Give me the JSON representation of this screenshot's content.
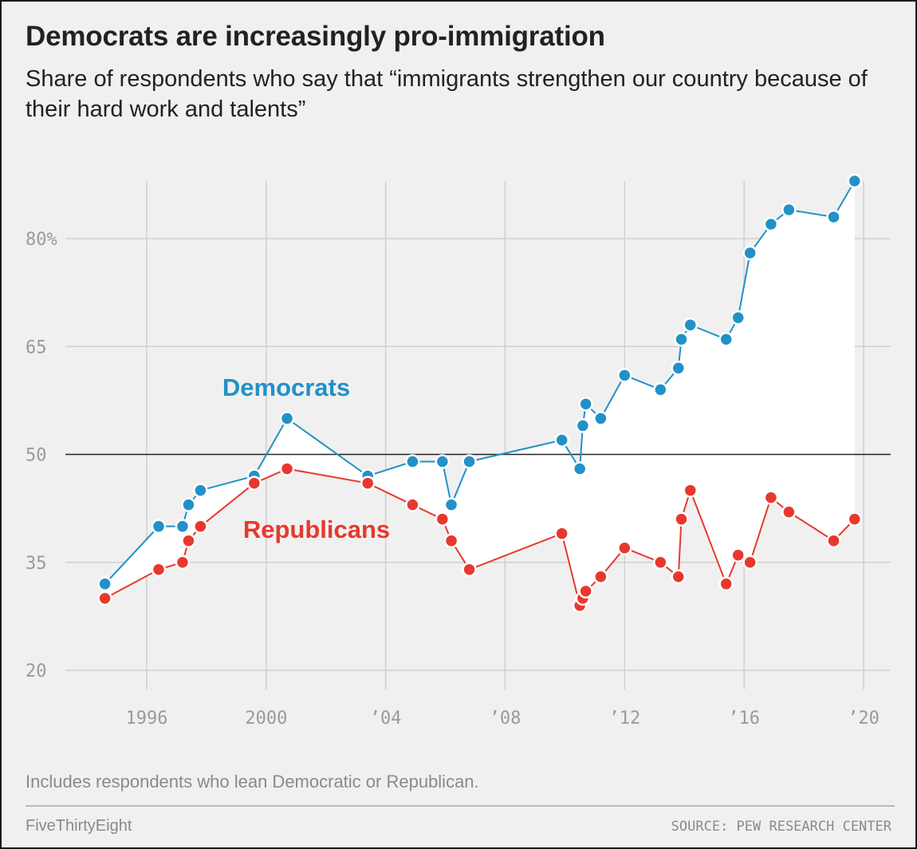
{
  "header": {
    "title": "Democrats are increasingly pro-immigration",
    "subtitle": "Share of respondents who say that “immigrants strengthen our country because of their hard work and talents”"
  },
  "footer": {
    "note": "Includes respondents who lean Democratic or Republican.",
    "brand": "FiveThirtyEight",
    "source": "SOURCE: PEW RESEARCH CENTER"
  },
  "chart_data": {
    "type": "line",
    "title": "Democrats are increasingly pro-immigration",
    "subtitle": "Share of respondents who say that “immigrants strengthen our country because of their hard work and talents”",
    "xlim": [
      1994.3,
      2020.4
    ],
    "ylim": [
      20,
      87
    ],
    "x_ticks": [
      1996,
      2000,
      2004,
      2008,
      2012,
      2016,
      2020
    ],
    "x_tick_labels": [
      "1996",
      "2000",
      "’04",
      "’08",
      "’12",
      "’16",
      "’20"
    ],
    "y_ticks": [
      20,
      35,
      50,
      65,
      80
    ],
    "y_tick_labels": [
      "20",
      "35",
      "50",
      "65",
      "80%"
    ],
    "reference_line": 50,
    "grid": true,
    "fill_between_series": true,
    "colors": {
      "background": "#f0f0f0",
      "grid": "#d0d0d0",
      "fill": "#ffffff",
      "democrats": "#2191c8",
      "republicans": "#e8382d",
      "reference": "#222222"
    },
    "series": [
      {
        "name": "Democrats",
        "color": "#2191c8",
        "label_position": "above",
        "x": [
          1994.6,
          1996.4,
          1997.2,
          1997.4,
          1997.8,
          1999.6,
          2000.7,
          2003.4,
          2004.9,
          2005.9,
          2006.2,
          2006.8,
          2009.9,
          2010.5,
          2010.6,
          2010.7,
          2011.2,
          2012.0,
          2013.2,
          2013.8,
          2013.9,
          2014.2,
          2015.4,
          2015.8,
          2016.2,
          2016.9,
          2017.5,
          2019.0,
          2019.7
        ],
        "y": [
          32,
          40,
          40,
          43,
          45,
          47,
          55,
          47,
          49,
          49,
          43,
          49,
          52,
          48,
          54,
          57,
          55,
          61,
          59,
          62,
          66,
          68,
          66,
          69,
          78,
          82,
          84,
          83,
          88
        ]
      },
      {
        "name": "Republicans",
        "color": "#e8382d",
        "label_position": "below",
        "x": [
          1994.6,
          1996.4,
          1997.2,
          1997.4,
          1997.8,
          1999.6,
          2000.7,
          2003.4,
          2004.9,
          2005.9,
          2006.2,
          2006.8,
          2009.9,
          2010.5,
          2010.6,
          2010.7,
          2011.2,
          2012.0,
          2013.2,
          2013.8,
          2013.9,
          2014.2,
          2015.4,
          2015.8,
          2016.2,
          2016.9,
          2017.5,
          2019.0,
          2019.7
        ],
        "y": [
          30,
          34,
          35,
          38,
          40,
          46,
          48,
          46,
          43,
          41,
          38,
          34,
          39,
          29,
          30,
          31,
          33,
          37,
          35,
          33,
          41,
          45,
          32,
          36,
          35,
          44,
          42,
          38,
          41
        ]
      }
    ]
  }
}
